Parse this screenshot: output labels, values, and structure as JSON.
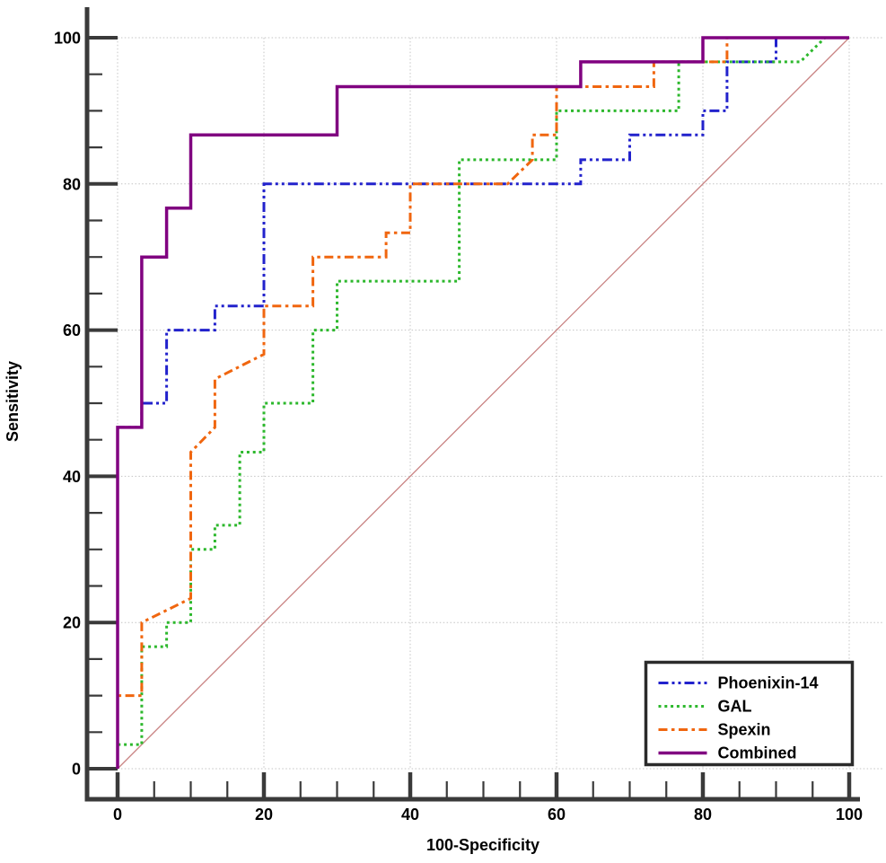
{
  "figure": {
    "background": "#ffffff",
    "axis_color": "#3a3a3a",
    "grid_color": "#c4c4c4",
    "text_color": "#000000"
  },
  "chart_data": {
    "type": "line",
    "subtype": "roc-step-curves",
    "title": "",
    "xlabel": "100-Specificity",
    "ylabel": "Sensitivity",
    "xlim": [
      0,
      100
    ],
    "ylim": [
      0,
      100
    ],
    "x_major_ticks": [
      0,
      20,
      40,
      60,
      80,
      100
    ],
    "y_major_ticks": [
      0,
      20,
      40,
      60,
      80,
      100
    ],
    "minor_tick_step": 5,
    "grid": true,
    "grid_style": "dotted",
    "legend_position": "bottom-right",
    "series": [
      {
        "name": "Phoenixin-14",
        "color": "#2222cc",
        "line_style": "dash-dot-dot",
        "line_width": 3,
        "points": [
          [
            0,
            0
          ],
          [
            0,
            46.7
          ],
          [
            3.3,
            46.7
          ],
          [
            3.3,
            50
          ],
          [
            6.7,
            50
          ],
          [
            6.7,
            60
          ],
          [
            13.3,
            60
          ],
          [
            13.3,
            63.3
          ],
          [
            20,
            63.3
          ],
          [
            20,
            80
          ],
          [
            63.3,
            80
          ],
          [
            63.3,
            83.3
          ],
          [
            70,
            83.3
          ],
          [
            70,
            86.7
          ],
          [
            80,
            86.7
          ],
          [
            80,
            90
          ],
          [
            83.3,
            90
          ],
          [
            83.3,
            96.7
          ],
          [
            90,
            96.7
          ],
          [
            90,
            100
          ],
          [
            100,
            100
          ]
        ]
      },
      {
        "name": "GAL",
        "color": "#2db82d",
        "line_style": "dotted",
        "line_width": 3,
        "points": [
          [
            0,
            0
          ],
          [
            0,
            3.3
          ],
          [
            3.3,
            3.3
          ],
          [
            3.3,
            16.7
          ],
          [
            6.7,
            16.7
          ],
          [
            6.7,
            20
          ],
          [
            10,
            20
          ],
          [
            10,
            30
          ],
          [
            13.3,
            30
          ],
          [
            13.3,
            33.3
          ],
          [
            16.7,
            33.3
          ],
          [
            16.7,
            43.3
          ],
          [
            20,
            43.3
          ],
          [
            20,
            50
          ],
          [
            26.7,
            50
          ],
          [
            26.7,
            60
          ],
          [
            30,
            60
          ],
          [
            30,
            66.7
          ],
          [
            46.7,
            66.7
          ],
          [
            46.7,
            83.3
          ],
          [
            60,
            83.3
          ],
          [
            60,
            90
          ],
          [
            76.7,
            90
          ],
          [
            76.7,
            96.7
          ],
          [
            93.3,
            96.7
          ],
          [
            96.7,
            100
          ],
          [
            100,
            100
          ]
        ]
      },
      {
        "name": "Spexin",
        "color": "#f0660f",
        "line_style": "dash-dot",
        "line_width": 3,
        "points": [
          [
            0,
            0
          ],
          [
            0,
            10
          ],
          [
            3.3,
            10
          ],
          [
            3.3,
            20
          ],
          [
            10,
            23.3
          ],
          [
            10,
            43.3
          ],
          [
            13.3,
            46.7
          ],
          [
            13.3,
            53.3
          ],
          [
            20,
            56.7
          ],
          [
            20,
            63.3
          ],
          [
            26.7,
            63.3
          ],
          [
            26.7,
            70
          ],
          [
            36.7,
            70
          ],
          [
            36.7,
            73.3
          ],
          [
            40,
            73.3
          ],
          [
            40,
            80
          ],
          [
            53.3,
            80
          ],
          [
            56.7,
            83.3
          ],
          [
            56.7,
            86.7
          ],
          [
            60,
            86.7
          ],
          [
            60,
            93.3
          ],
          [
            73.3,
            93.3
          ],
          [
            73.3,
            96.7
          ],
          [
            83.3,
            96.7
          ],
          [
            83.3,
            100
          ],
          [
            100,
            100
          ]
        ]
      },
      {
        "name": "Combined",
        "color": "#800080",
        "line_style": "solid",
        "line_width": 3.5,
        "points": [
          [
            0,
            0
          ],
          [
            0,
            46.7
          ],
          [
            3.3,
            46.7
          ],
          [
            3.3,
            70
          ],
          [
            6.7,
            70
          ],
          [
            6.7,
            76.7
          ],
          [
            10,
            76.7
          ],
          [
            10,
            86.7
          ],
          [
            30,
            86.7
          ],
          [
            30,
            93.3
          ],
          [
            63.3,
            93.3
          ],
          [
            63.3,
            96.7
          ],
          [
            80,
            96.7
          ],
          [
            80,
            100
          ],
          [
            100,
            100
          ]
        ]
      }
    ],
    "reference_line": {
      "name": "chance-diagonal",
      "from": [
        0,
        0
      ],
      "to": [
        100,
        100
      ],
      "color": "#c98383",
      "line_width": 1.3
    }
  }
}
